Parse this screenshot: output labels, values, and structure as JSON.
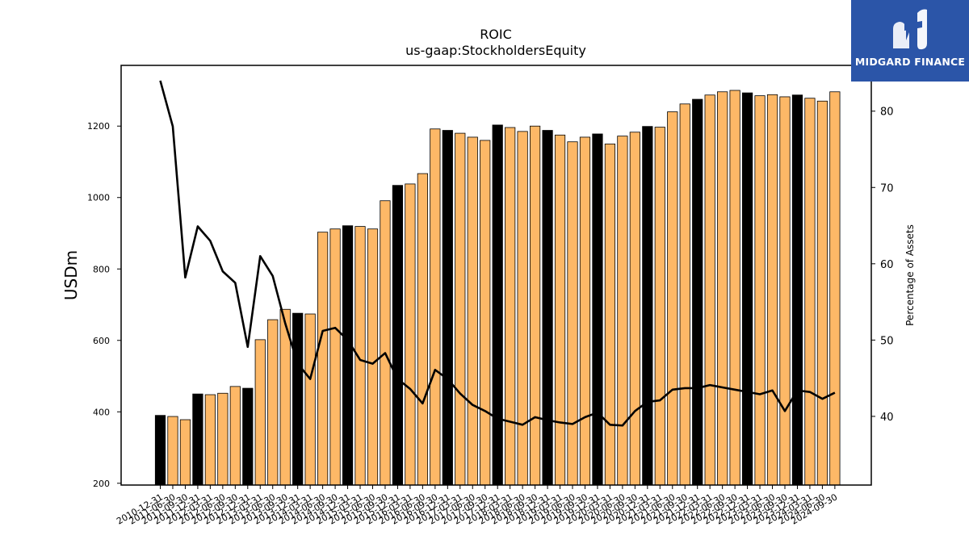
{
  "logo": {
    "text": "MIDGARD FINANCE",
    "bg_color": "#2b55a8"
  },
  "chart_data": {
    "type": "bar",
    "title": "ROIC",
    "subtitle": "us-gaap:StockholdersEquity",
    "ylabel": "USDm",
    "y2label": "Percentage of Assets",
    "ylim": [
      195,
      1370
    ],
    "y2lim": [
      31,
      86
    ],
    "yticks": [
      200,
      400,
      600,
      800,
      1000,
      1200
    ],
    "y2ticks": [
      40,
      50,
      60,
      70,
      80
    ],
    "categories": [
      "2010-12-31",
      "2011-06-30",
      "2011-09-30",
      "2011-12-31",
      "2012-03-31",
      "2012-06-30",
      "2012-09-30",
      "2012-12-31",
      "2013-03-31",
      "2013-06-30",
      "2013-09-30",
      "2013-12-31",
      "2014-03-31",
      "2014-06-30",
      "2014-09-30",
      "2014-12-31",
      "2015-03-31",
      "2015-06-30",
      "2015-09-30",
      "2015-12-31",
      "2016-03-31",
      "2016-06-30",
      "2016-09-30",
      "2016-12-31",
      "2017-03-31",
      "2017-06-30",
      "2017-09-30",
      "2017-12-31",
      "2018-03-31",
      "2018-06-30",
      "2018-09-30",
      "2018-12-31",
      "2019-03-31",
      "2019-06-30",
      "2019-09-30",
      "2019-12-31",
      "2020-03-31",
      "2020-06-30",
      "2020-09-30",
      "2020-12-31",
      "2021-03-31",
      "2021-06-30",
      "2021-09-30",
      "2021-12-31",
      "2022-03-31",
      "2022-06-30",
      "2022-09-30",
      "2022-12-31",
      "2023-03-31",
      "2023-06-30",
      "2023-09-30",
      "2023-12-31",
      "2024-03-31",
      "2024-06-30",
      "2024-09-30"
    ],
    "series": [
      {
        "type": "bar",
        "values": [
          390,
          387,
          378,
          450,
          448,
          452,
          471,
          466,
          602,
          658,
          687,
          676,
          674,
          903,
          912,
          921,
          919,
          912,
          991,
          1034,
          1038,
          1067,
          1192,
          1188,
          1180,
          1169,
          1160,
          1203,
          1196,
          1185,
          1200,
          1188,
          1175,
          1156,
          1169,
          1178,
          1150,
          1172,
          1183,
          1199,
          1197,
          1240,
          1262,
          1275,
          1287,
          1296,
          1300,
          1293,
          1285,
          1288,
          1282,
          1287,
          1278,
          1270,
          1296
        ],
        "highlight": [
          true,
          false,
          false,
          true,
          false,
          false,
          false,
          true,
          false,
          false,
          false,
          true,
          false,
          false,
          false,
          true,
          false,
          false,
          false,
          true,
          false,
          false,
          false,
          true,
          false,
          false,
          false,
          true,
          false,
          false,
          false,
          true,
          false,
          false,
          false,
          true,
          false,
          false,
          false,
          true,
          false,
          false,
          false,
          true,
          false,
          false,
          false,
          true,
          false,
          false,
          false,
          true,
          false,
          false,
          false
        ]
      },
      {
        "type": "line",
        "axis": "right",
        "values": [
          84.0,
          78.0,
          58.2,
          64.9,
          63.0,
          59.0,
          57.5,
          49.1,
          61.0,
          58.4,
          52.2,
          46.9,
          44.9,
          51.2,
          51.6,
          50.0,
          47.4,
          46.9,
          48.3,
          44.9,
          43.6,
          41.7,
          46.1,
          44.9,
          43.0,
          41.5,
          40.7,
          39.7,
          39.3,
          38.9,
          39.9,
          39.5,
          39.2,
          39.0,
          39.9,
          40.5,
          38.9,
          38.8,
          40.7,
          41.9,
          42.1,
          43.5,
          43.7,
          43.7,
          44.1,
          43.8,
          43.5,
          43.2,
          42.9,
          43.4,
          40.7,
          43.4,
          43.2,
          42.3,
          43.1
        ]
      }
    ],
    "colors": {
      "bar": "#fdb867",
      "bar_highlight": "#000000",
      "bar_edge": "#000000",
      "line": "#000000"
    },
    "grid": false,
    "legend": "none"
  }
}
